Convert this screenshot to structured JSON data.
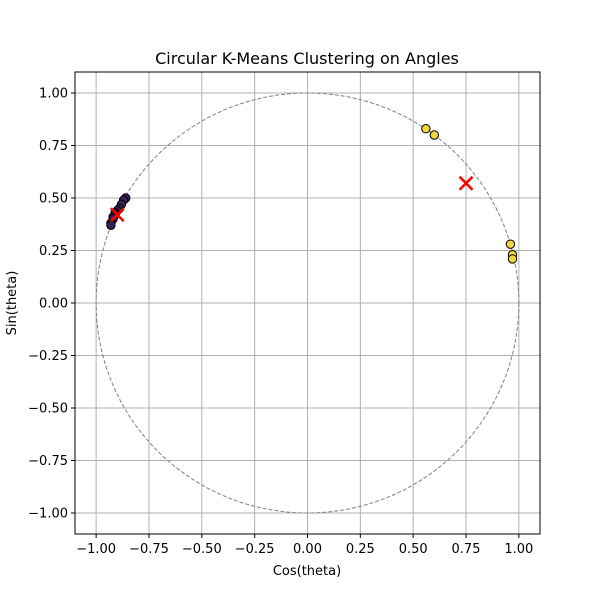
{
  "chart_data": {
    "type": "scatter",
    "title": "Circular K-Means Clustering on Angles",
    "xlabel": "Cos(theta)",
    "ylabel": "Sin(theta)",
    "xlim": [
      -1.1,
      1.1
    ],
    "ylim": [
      -1.1,
      1.1
    ],
    "xticks": [
      -1.0,
      -0.75,
      -0.5,
      -0.25,
      0.0,
      0.25,
      0.5,
      0.75,
      1.0
    ],
    "yticks": [
      -1.0,
      -0.75,
      -0.5,
      -0.25,
      0.0,
      0.25,
      0.5,
      0.75,
      1.0
    ],
    "xtick_labels": [
      "−1.00",
      "−0.75",
      "−0.50",
      "−0.25",
      "0.00",
      "0.25",
      "0.50",
      "0.75",
      "1.00"
    ],
    "ytick_labels": [
      "−1.00",
      "−0.75",
      "−0.50",
      "−0.25",
      "0.00",
      "0.25",
      "0.50",
      "0.75",
      "1.00"
    ],
    "grid": true,
    "unit_circle": {
      "style": "dashed",
      "color": "#808080",
      "radius": 1.0
    },
    "series": [
      {
        "color": "#3b1f57",
        "points": [
          [
            -0.86,
            0.5
          ],
          [
            -0.87,
            0.49
          ],
          [
            -0.88,
            0.47
          ],
          [
            -0.89,
            0.45
          ],
          [
            -0.9,
            0.44
          ],
          [
            -0.91,
            0.43
          ],
          [
            -0.91,
            0.42
          ],
          [
            -0.92,
            0.41
          ],
          [
            -0.92,
            0.4
          ],
          [
            -0.93,
            0.38
          ],
          [
            -0.93,
            0.37
          ]
        ]
      },
      {
        "color": "#f2d43c",
        "points": [
          [
            0.56,
            0.83
          ],
          [
            0.6,
            0.8
          ],
          [
            0.96,
            0.28
          ],
          [
            0.97,
            0.23
          ],
          [
            0.97,
            0.21
          ]
        ]
      }
    ],
    "centroids": {
      "marker": "x",
      "color": "#ff0000",
      "points": [
        [
          -0.9,
          0.42
        ],
        [
          0.75,
          0.57
        ]
      ]
    }
  }
}
